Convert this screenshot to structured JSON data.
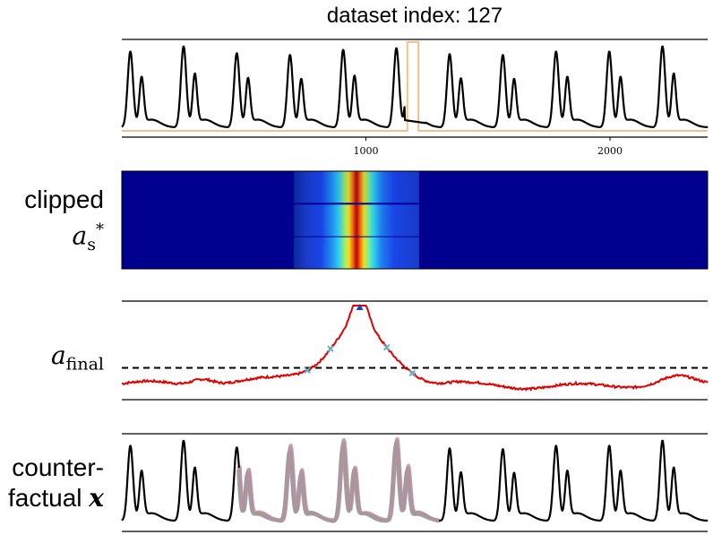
{
  "title": "dataset index: 127",
  "row_labels": {
    "clipped_line1": "clipped",
    "clipped_sym": "a",
    "clipped_sub": "s",
    "clipped_sup": "*",
    "afinal_sym": "a",
    "afinal_sub": "final",
    "cf_line1": "counter-",
    "cf_line2": "factual ",
    "cf_sym": "x"
  },
  "colors": {
    "signal": "#000000",
    "window": "#f4c08c",
    "attribution": "#e00000",
    "threshold": "#000000",
    "peak_marker": "#1f3fbf",
    "cross_marker": "#5fb6c8"
  },
  "chart_data": [
    {
      "type": "line",
      "name": "input-signal",
      "title": "dataset index: 127",
      "x_range": [
        0,
        2400
      ],
      "x_ticks": [
        1000,
        2000
      ],
      "x_tick_labels": [
        "1000",
        "2000"
      ],
      "beat_period": 218,
      "first_beat": 35,
      "pulse_heights": [
        0.88,
        0.94,
        0.86,
        0.84,
        0.9,
        0.92,
        0.85,
        0.84,
        0.88
      ],
      "window": {
        "x_start": 1170,
        "x_end": 1215,
        "color_name": "window"
      },
      "series": [
        {
          "name": "signal"
        },
        {
          "name": "highlight-window"
        }
      ]
    },
    {
      "type": "heatmap",
      "name": "clipped-attribution",
      "rows": 3,
      "x_range": [
        0,
        2400
      ],
      "active_range": [
        705,
        1218
      ],
      "peak_x": 975,
      "colormap": "jet"
    },
    {
      "type": "line",
      "name": "final-attribution",
      "x_range": [
        0,
        2400
      ],
      "y_range": [
        0,
        1
      ],
      "threshold": 0.28,
      "peak": {
        "x": 975,
        "y": 0.97
      },
      "crossings_x": [
        760,
        855,
        1085,
        1190
      ],
      "series": [
        {
          "name": "a_final"
        },
        {
          "name": "threshold"
        }
      ]
    },
    {
      "type": "line",
      "name": "counterfactual",
      "x_range": [
        0,
        2400
      ],
      "beat_period": 218,
      "first_beat": 35,
      "variant_window": [
        480,
        1300
      ],
      "variant_colors": [
        "#7aa6b8",
        "#a58a9a",
        "#b89a6a",
        "#6fb8a8",
        "#c08aa0"
      ],
      "series": [
        {
          "name": "original"
        },
        {
          "name": "counterfactual-variants"
        }
      ]
    }
  ]
}
